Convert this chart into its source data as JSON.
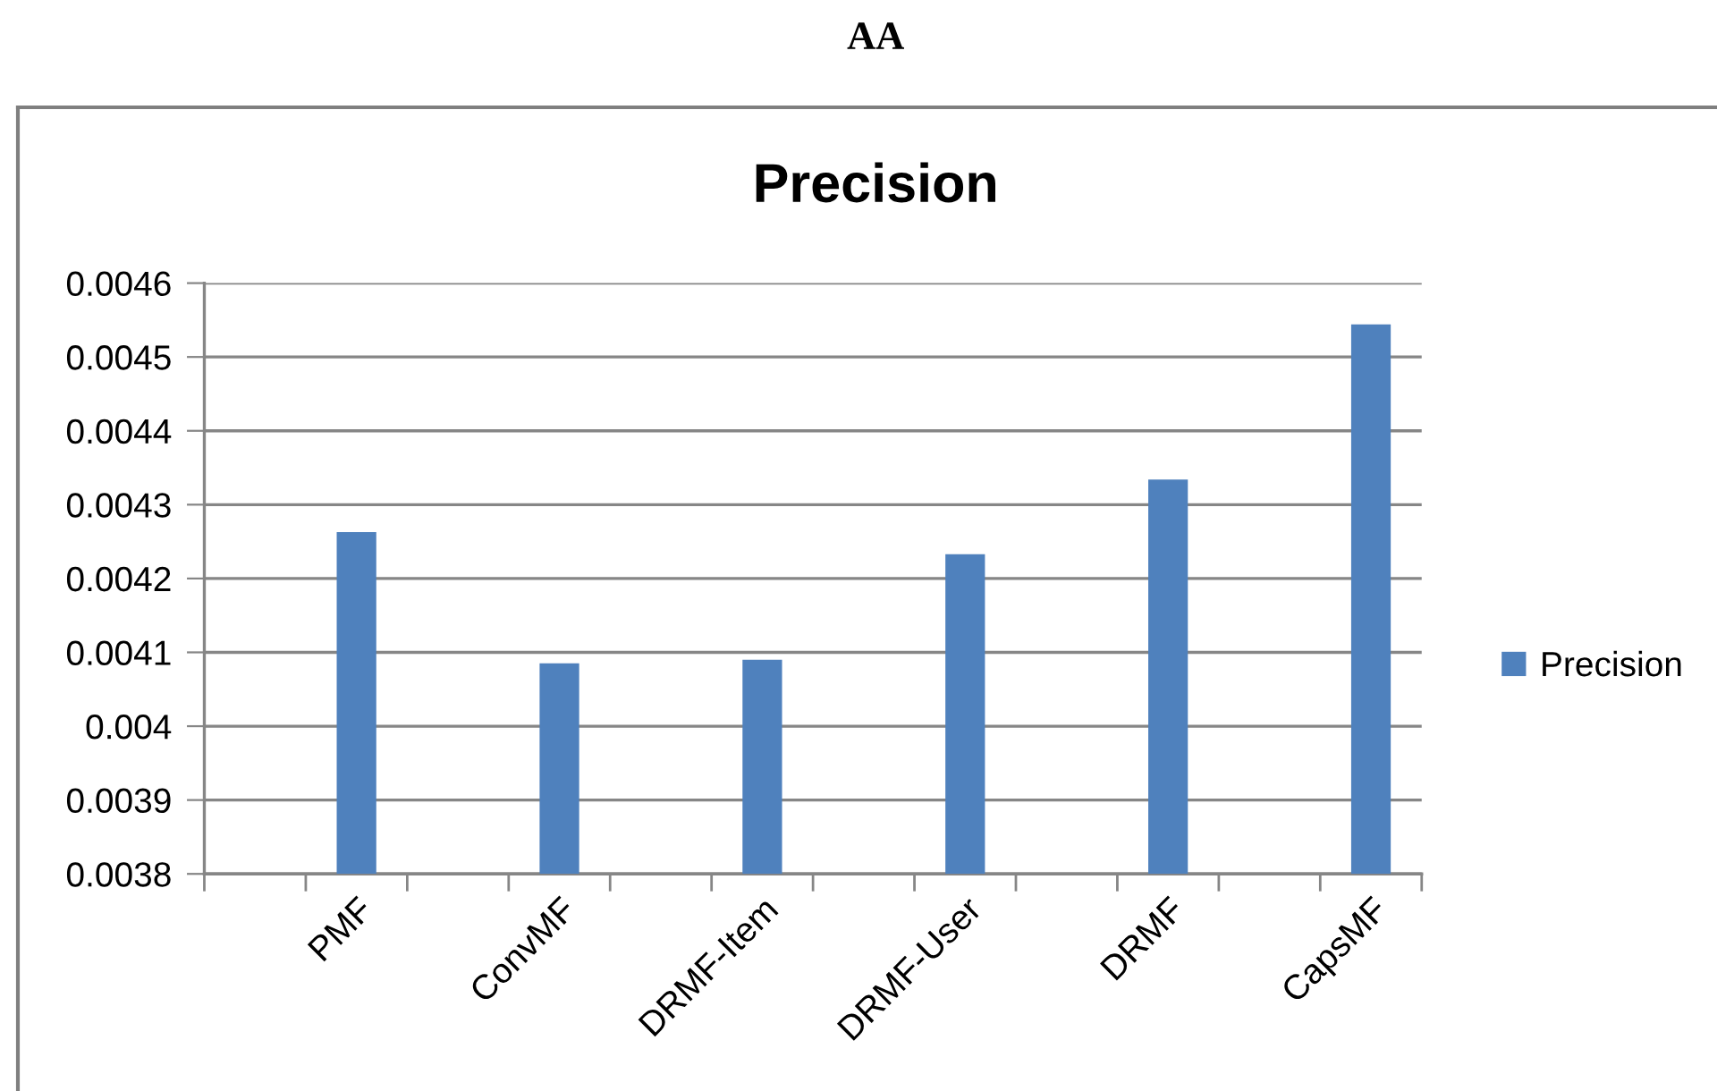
{
  "chart_data": {
    "type": "bar",
    "title": "Precision",
    "annotations": [
      "AA"
    ],
    "categories": [
      null,
      "PMF",
      null,
      "ConvMF",
      null,
      "DRMF-Item",
      null,
      "DRMF-User",
      null,
      "DRMF",
      null,
      "CapsMF"
    ],
    "series": [
      {
        "name": "Precision",
        "color": "#4f81bd",
        "values": [
          null,
          0.004263,
          null,
          0.004085,
          null,
          0.00409,
          null,
          0.004233,
          null,
          0.004334,
          null,
          0.004544
        ]
      }
    ],
    "ylim": [
      0.0038,
      0.0046
    ],
    "yticks": [
      0.0038,
      0.0039,
      0.004,
      0.0041,
      0.0042,
      0.0043,
      0.0044,
      0.0045,
      0.0046
    ],
    "grid": "y",
    "legend": "right"
  }
}
